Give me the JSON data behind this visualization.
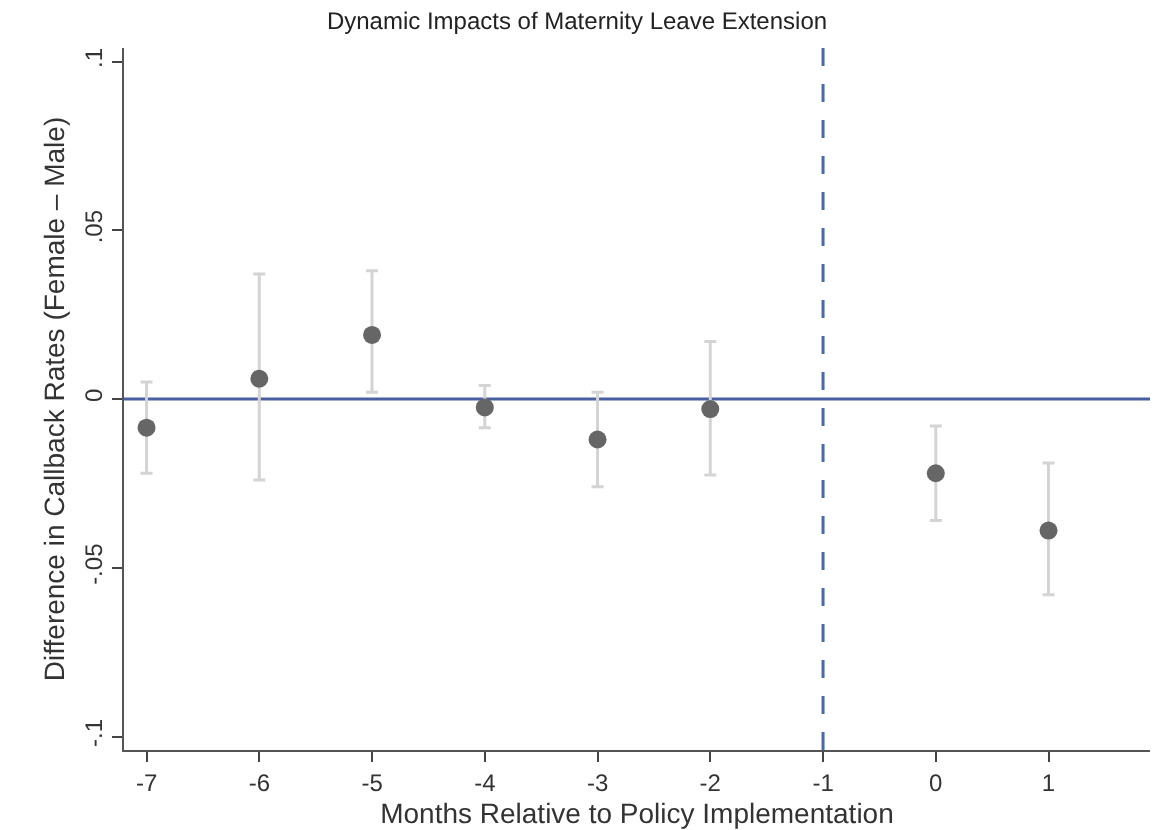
{
  "chart_data": {
    "type": "scatter",
    "title": "Dynamic Impacts of Maternity Leave Extension",
    "xlabel": "Months Relative to Policy Implementation",
    "ylabel": "Difference in Callback Rates (Female – Male)",
    "x": [
      -7,
      -6,
      -5,
      -4,
      -3,
      -2,
      0,
      1
    ],
    "series": [
      {
        "color": "#666666",
        "values": [
          -0.0085,
          0.006,
          0.019,
          -0.0025,
          -0.012,
          -0.003,
          -0.022,
          -0.039
        ],
        "errors": [
          [
            -0.022,
            0.005
          ],
          [
            -0.024,
            0.037
          ],
          [
            0.002,
            0.038
          ],
          [
            -0.0085,
            0.004
          ],
          [
            -0.026,
            0.002
          ],
          [
            -0.0225,
            0.017
          ],
          [
            -0.036,
            -0.008
          ],
          [
            -0.058,
            -0.019
          ]
        ]
      }
    ],
    "xlim": [
      -7.2,
      1.9
    ],
    "xticks": [
      -7,
      -6,
      -5,
      -4,
      -3,
      -2,
      -1,
      0,
      1
    ],
    "ylim": [
      -0.104,
      0.104
    ],
    "yticks": [
      {
        "value": -0.1,
        "label": "-.1"
      },
      {
        "value": -0.05,
        "label": "-.05"
      },
      {
        "value": 0,
        "label": "0"
      },
      {
        "value": 0.05,
        "label": ".05"
      },
      {
        "value": 0.1,
        "label": ".1"
      }
    ],
    "ref_lines": [
      {
        "axis": "y",
        "value": 0,
        "color": "#4a5fa0",
        "line_style": "solid"
      },
      {
        "axis": "x",
        "value": -1,
        "color": "#4a6aa8",
        "line_style": "dashed"
      }
    ],
    "marker": "circle",
    "grid": false
  }
}
